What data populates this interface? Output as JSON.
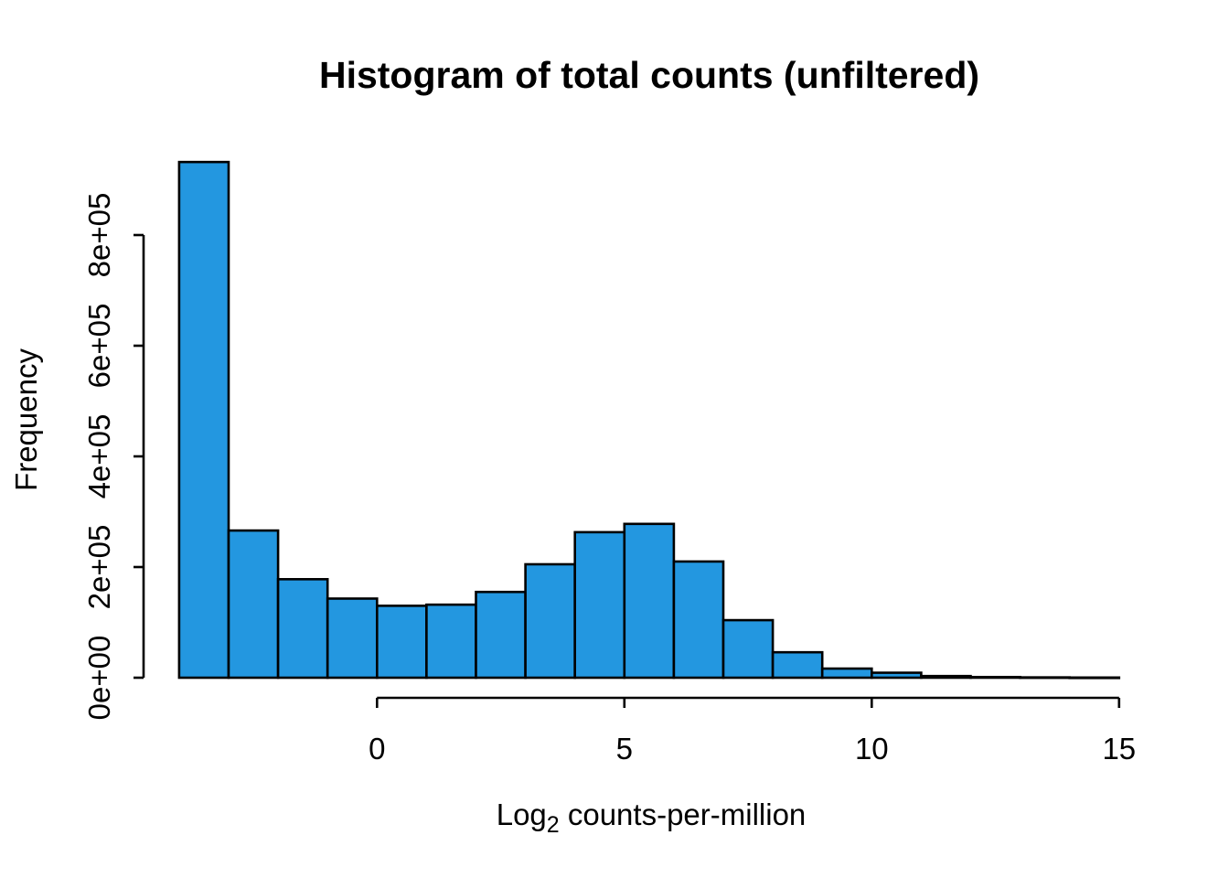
{
  "chart_data": {
    "type": "bar",
    "subtype": "histogram",
    "title": "Histogram of total counts (unfiltered)",
    "xlabel": {
      "main": "Log",
      "sub": "2",
      "rest": " counts-per-million"
    },
    "ylabel": "Frequency",
    "bar_fill_color": "#2397E0",
    "bar_stroke_color": "#000000",
    "axis_color": "#000000",
    "background_color": "#ffffff",
    "bin_start": -4,
    "bin_width": 1,
    "counts": [
      932000,
      266000,
      178000,
      143000,
      130000,
      132000,
      155000,
      205000,
      263000,
      278000,
      210000,
      104000,
      46000,
      16500,
      9000,
      3000,
      1200,
      600,
      300
    ],
    "xlim": [
      -4,
      15
    ],
    "ylim": [
      0,
      800000
    ],
    "grid": "off",
    "legend": "none",
    "x_ticks": [
      {
        "value": 0,
        "label": "0"
      },
      {
        "value": 5,
        "label": "5"
      },
      {
        "value": 10,
        "label": "10"
      },
      {
        "value": 15,
        "label": "15"
      }
    ],
    "y_ticks": [
      {
        "value": 0,
        "label": "0e+00"
      },
      {
        "value": 200000,
        "label": "2e+05"
      },
      {
        "value": 400000,
        "label": "4e+05"
      },
      {
        "value": 600000,
        "label": "6e+05"
      },
      {
        "value": 800000,
        "label": "8e+05"
      }
    ]
  }
}
